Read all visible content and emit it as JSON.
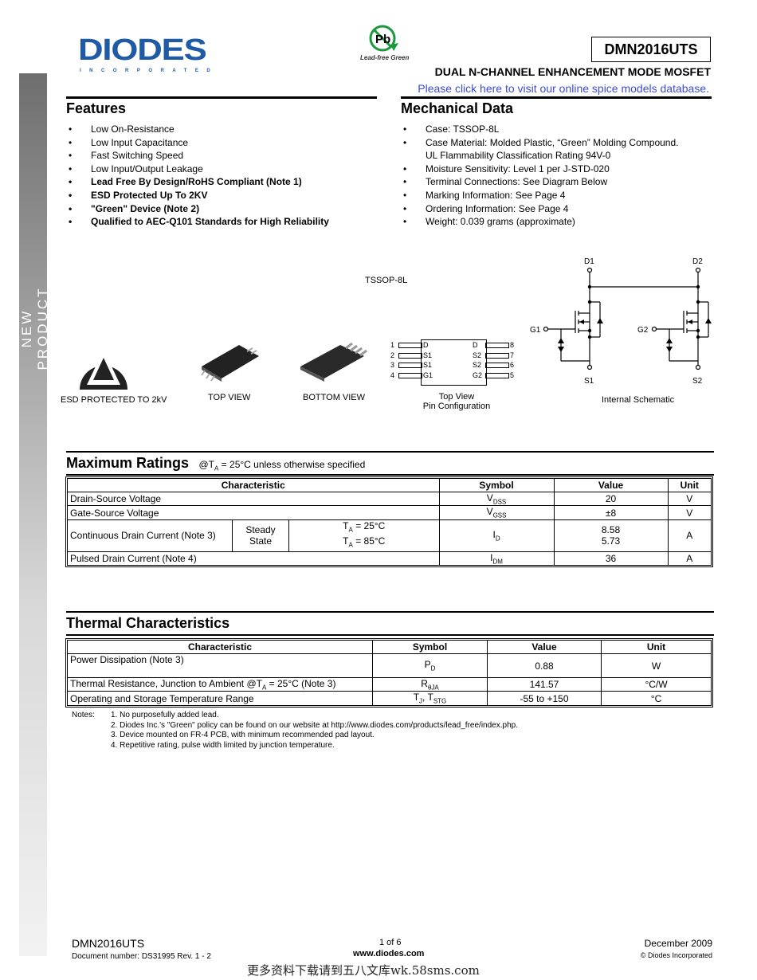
{
  "header": {
    "logo": "DIODES",
    "logo_sub": "INCORPORATED",
    "pb_badge": "Lead-free Green",
    "part_number": "DMN2016UTS",
    "subtitle": "DUAL N-CHANNEL ENHANCEMENT MODE MOSFET",
    "spice_link": "Please click here to visit our online spice models database."
  },
  "sidebar": {
    "label": "NEW PRODUCT"
  },
  "features": {
    "title": "Features",
    "items": [
      {
        "text": "Low On-Resistance",
        "bold": false
      },
      {
        "text": "Low Input Capacitance",
        "bold": false
      },
      {
        "text": "Fast Switching Speed",
        "bold": false
      },
      {
        "text": "Low Input/Output Leakage",
        "bold": false
      },
      {
        "text": "Lead Free By Design/RoHS Compliant (Note 1)",
        "bold": true
      },
      {
        "text": "ESD Protected Up To 2KV",
        "bold": true
      },
      {
        "text": "\"Green\" Device (Note 2)",
        "bold": true
      },
      {
        "text": "Qualified to AEC-Q101 Standards for High Reliability",
        "bold": true
      }
    ]
  },
  "mechanical": {
    "title": "Mechanical Data",
    "items": [
      "Case: TSSOP-8L",
      "Case Material: Molded Plastic, “Green” Molding Compound.",
      "UL Flammability Classification Rating 94V-0",
      "Moisture Sensitivity: Level 1 per J-STD-020",
      "Terminal Connections: See Diagram Below",
      "Marking Information: See Page 4",
      "Ordering Information: See Page 4",
      "Weight: 0.039 grams (approximate)"
    ]
  },
  "figures": {
    "package": "TSSOP-8L",
    "esd": "ESD PROTECTED TO 2kV",
    "top_view": "TOP VIEW",
    "bottom_view": "BOTTOM VIEW",
    "pin_caption_1": "Top View",
    "pin_caption_2": "Pin Configuration",
    "pins_left": [
      {
        "num": "1",
        "name": "D"
      },
      {
        "num": "2",
        "name": "S1"
      },
      {
        "num": "3",
        "name": "S1"
      },
      {
        "num": "4",
        "name": "G1"
      }
    ],
    "pins_right": [
      {
        "num": "8",
        "name": "D"
      },
      {
        "num": "7",
        "name": "S2"
      },
      {
        "num": "6",
        "name": "S2"
      },
      {
        "num": "5",
        "name": "G2"
      }
    ],
    "schematic_caption": "Internal Schematic",
    "schematic_labels": {
      "d1": "D1",
      "d2": "D2",
      "g1": "G1",
      "g2": "G2",
      "s1": "S1",
      "s2": "S2"
    }
  },
  "max_ratings": {
    "title": "Maximum Ratings",
    "condition_pre": "@T",
    "condition_sub": "A",
    "condition_post": " = 25°C unless otherwise specified",
    "headers": [
      "Characteristic",
      "Symbol",
      "Value",
      "Unit"
    ],
    "rows": [
      {
        "char": "Drain-Source Voltage",
        "sym": "V",
        "sub": "DSS",
        "value": "20",
        "unit": "V"
      },
      {
        "char": "Gate-Source Voltage",
        "sym": "V",
        "sub": "GSS",
        "value": "±8",
        "unit": "V"
      },
      {
        "char": "Continuous Drain Current (Note 3)",
        "state": "Steady State",
        "cond1": "T",
        "cond1_sub": "A",
        "cond1_post": " = 25°C",
        "cond2": "T",
        "cond2_sub": "A",
        "cond2_post": " = 85°C",
        "sym": "I",
        "sub": "D",
        "value1": "8.58",
        "value2": "5.73",
        "unit": "A"
      },
      {
        "char": "Pulsed Drain Current (Note 4)",
        "sym": "I",
        "sub": "DM",
        "value": "36",
        "unit": "A"
      }
    ]
  },
  "thermal": {
    "title": "Thermal Characteristics",
    "headers": [
      "Characteristic",
      "Symbol",
      "Value",
      "Unit"
    ],
    "rows": [
      {
        "char": "Power Dissipation (Note 3)",
        "sym": "P",
        "sub": "D",
        "value": "0.88",
        "unit": "W"
      },
      {
        "char_pre": "Thermal Resistance, Junction to Ambient @T",
        "char_sub": "A",
        "char_post": " = 25°C (Note 3)",
        "sym": "R",
        "sub": "θJA",
        "value": "141.57",
        "unit": "°C/W"
      },
      {
        "char": "Operating and Storage Temperature Range",
        "sym": "T",
        "sub": "J",
        "sym2": ", T",
        "sub2": "STG",
        "value": "-55 to +150",
        "unit": "°C"
      }
    ]
  },
  "notes": {
    "label": "Notes:",
    "items": [
      "1. No purposefully added lead.",
      "2. Diodes Inc.'s \"Green\" policy can be found on our website at http://www.diodes.com/products/lead_free/index.php.",
      "3. Device mounted on FR-4 PCB, with minimum recommended pad layout.",
      "4. Repetitive rating, pulse width limited by junction temperature."
    ]
  },
  "footer": {
    "part": "DMN2016UTS",
    "doc": "Document number: DS31995 Rev. 1 - 2",
    "page": "1 of 6",
    "website": "www.diodes.com",
    "date": "December 2009",
    "copyright": "© Diodes Incorporated",
    "watermark": "更多资料下载请到五八文库wk.58sms.com"
  }
}
